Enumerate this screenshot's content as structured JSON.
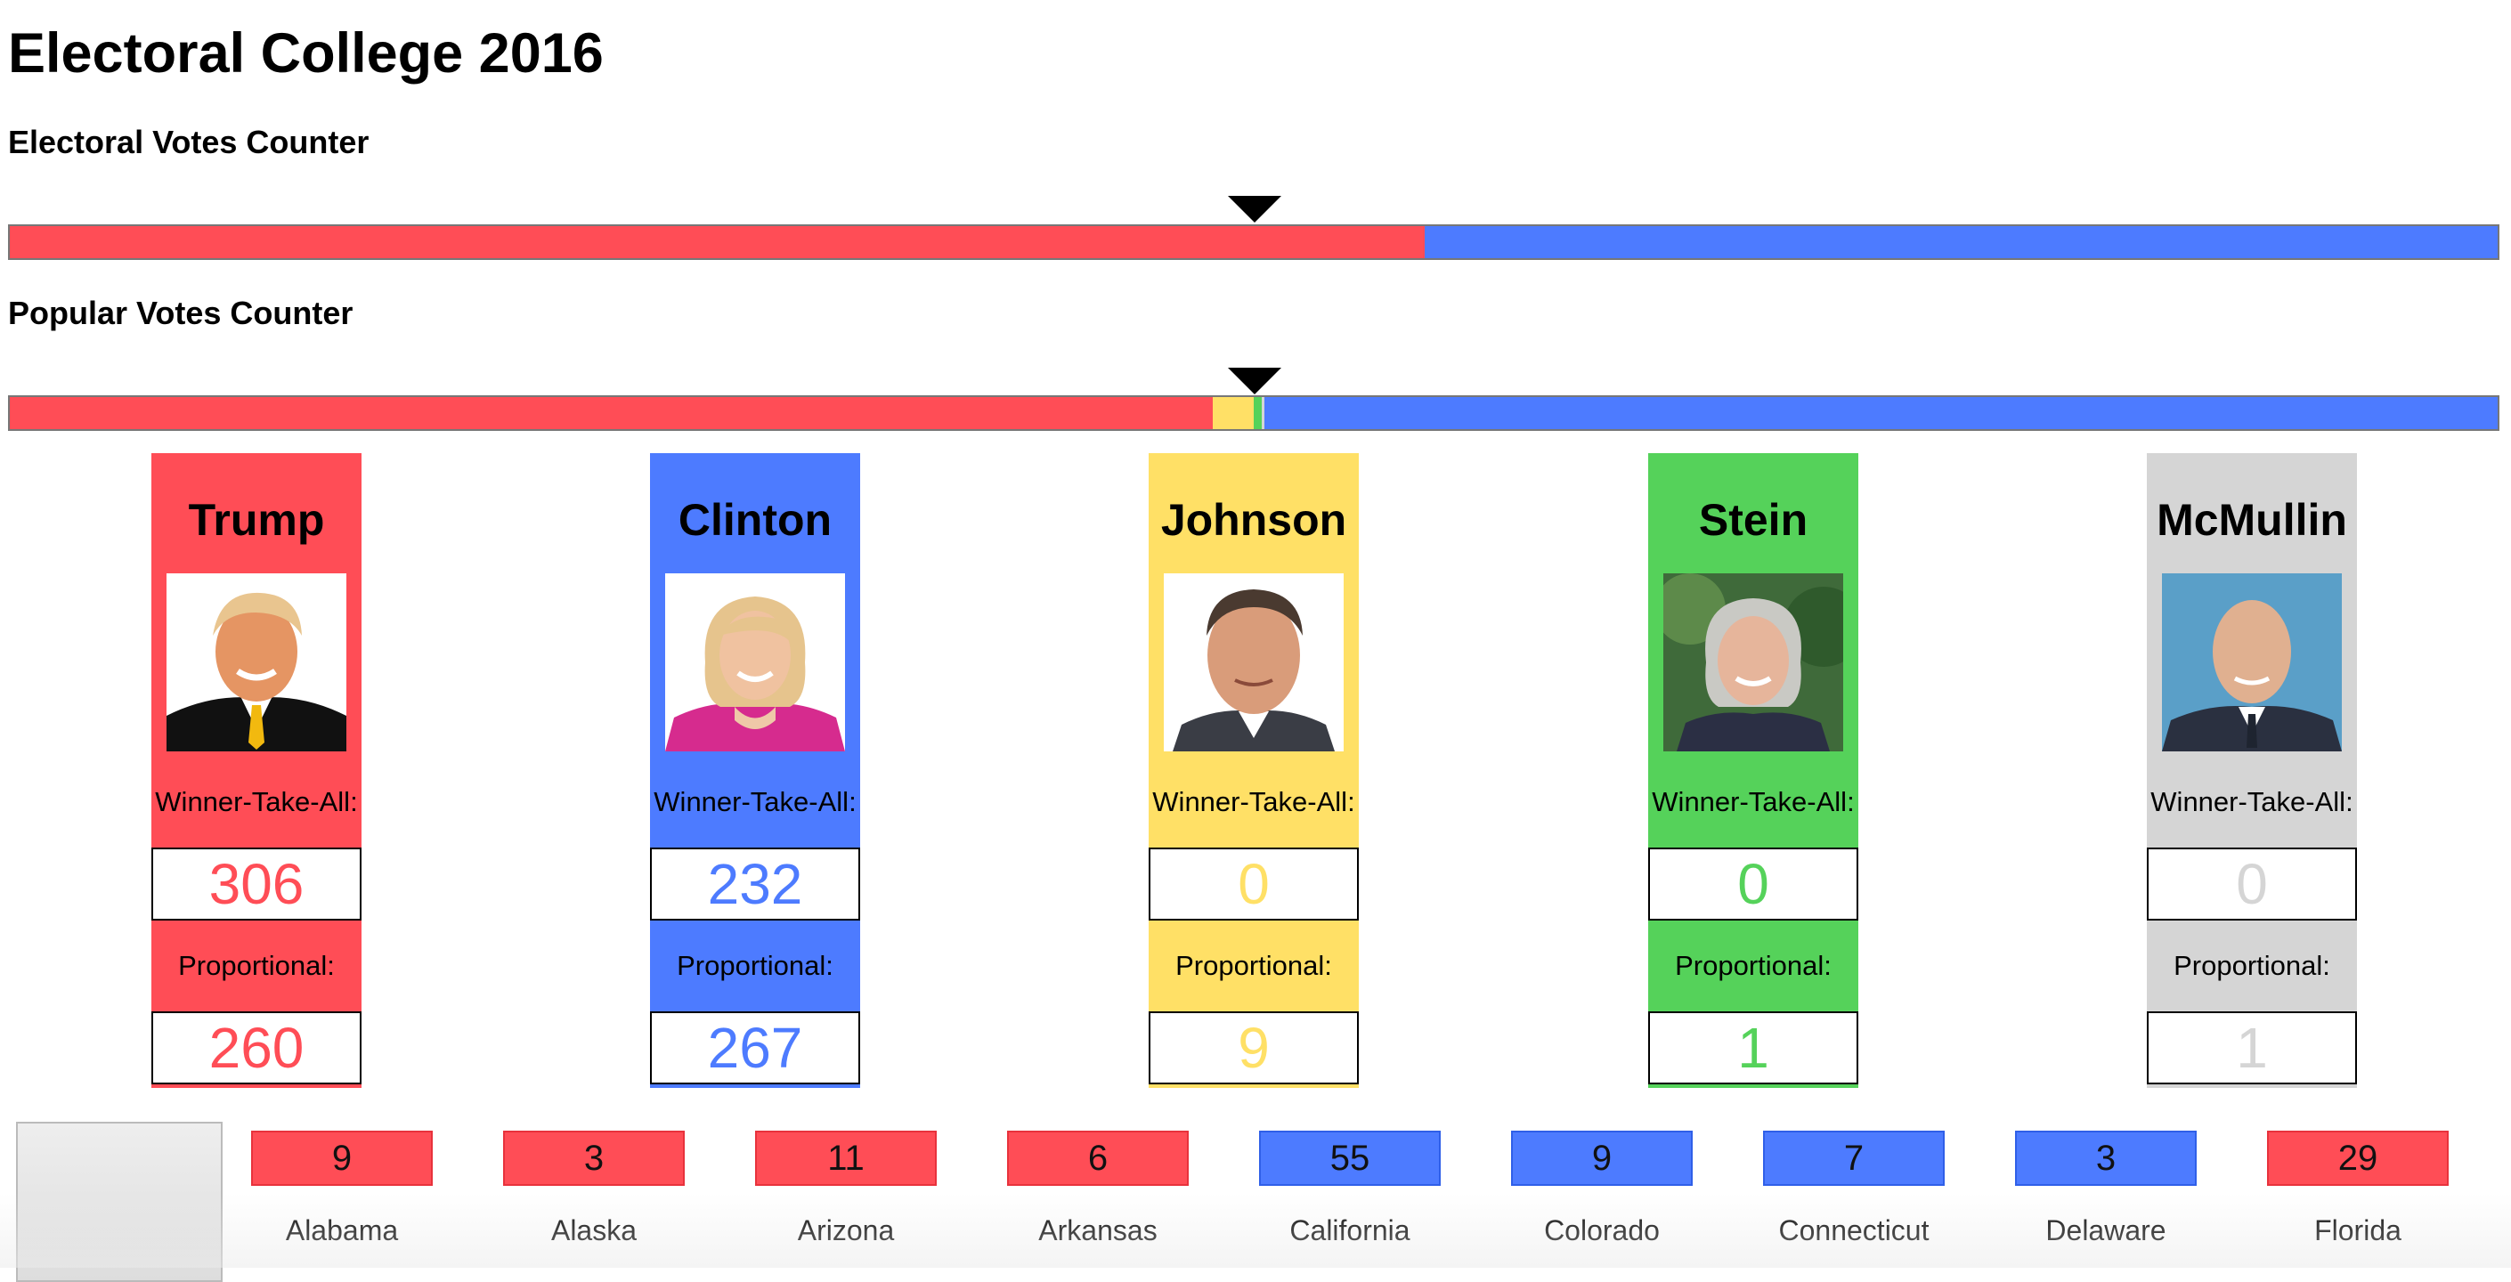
{
  "page_title": "Electoral College 2016",
  "electoral_counter": {
    "label": "Electoral Votes Counter",
    "shares": {
      "trump": 0.5688,
      "clinton": 0.4312
    },
    "marker_fraction": 0.5
  },
  "popular_counter": {
    "label": "Popular Votes Counter",
    "shares": {
      "trump": 0.4834,
      "johnson": 0.0166,
      "stein": 0.0033,
      "mcmullin": 0.001,
      "clinton": 0.4957
    },
    "marker_fraction": 0.5
  },
  "candidates": [
    {
      "name": "Trump",
      "color": "#FF4D56",
      "wta_label": "Winner-Take-All:",
      "wta": "306",
      "prop_label": "Proportional:",
      "prop": "260",
      "photo_icon": "trump-photo"
    },
    {
      "name": "Clinton",
      "color": "#4D7BFF",
      "wta_label": "Winner-Take-All:",
      "wta": "232",
      "prop_label": "Proportional:",
      "prop": "267",
      "photo_icon": "clinton-photo"
    },
    {
      "name": "Johnson",
      "color": "#FFE066",
      "wta_label": "Winner-Take-All:",
      "wta": "0",
      "prop_label": "Proportional:",
      "prop": "9",
      "photo_icon": "johnson-photo"
    },
    {
      "name": "Stein",
      "color": "#55D25A",
      "wta_label": "Winner-Take-All:",
      "wta": "0",
      "prop_label": "Proportional:",
      "prop": "1",
      "photo_icon": "stein-photo"
    },
    {
      "name": "McMullin",
      "color": "#D5D5D5",
      "wta_label": "Winner-Take-All:",
      "wta": "0",
      "prop_label": "Proportional:",
      "prop": "1",
      "photo_icon": "mcmullin-photo"
    }
  ],
  "states": [
    {
      "name": "Alabama",
      "ev": "9",
      "winner": "trump"
    },
    {
      "name": "Alaska",
      "ev": "3",
      "winner": "trump"
    },
    {
      "name": "Arizona",
      "ev": "11",
      "winner": "trump"
    },
    {
      "name": "Arkansas",
      "ev": "6",
      "winner": "trump"
    },
    {
      "name": "California",
      "ev": "55",
      "winner": "clinton"
    },
    {
      "name": "Colorado",
      "ev": "9",
      "winner": "clinton"
    },
    {
      "name": "Connecticut",
      "ev": "7",
      "winner": "clinton"
    },
    {
      "name": "Delaware",
      "ev": "3",
      "winner": "clinton"
    },
    {
      "name": "Florida",
      "ev": "29",
      "winner": "trump"
    }
  ],
  "colors": {
    "trump": "#FF4D56",
    "clinton": "#4D7BFF",
    "johnson": "#FFE066",
    "stein": "#55D25A",
    "mcmullin": "#D5D5D5"
  }
}
